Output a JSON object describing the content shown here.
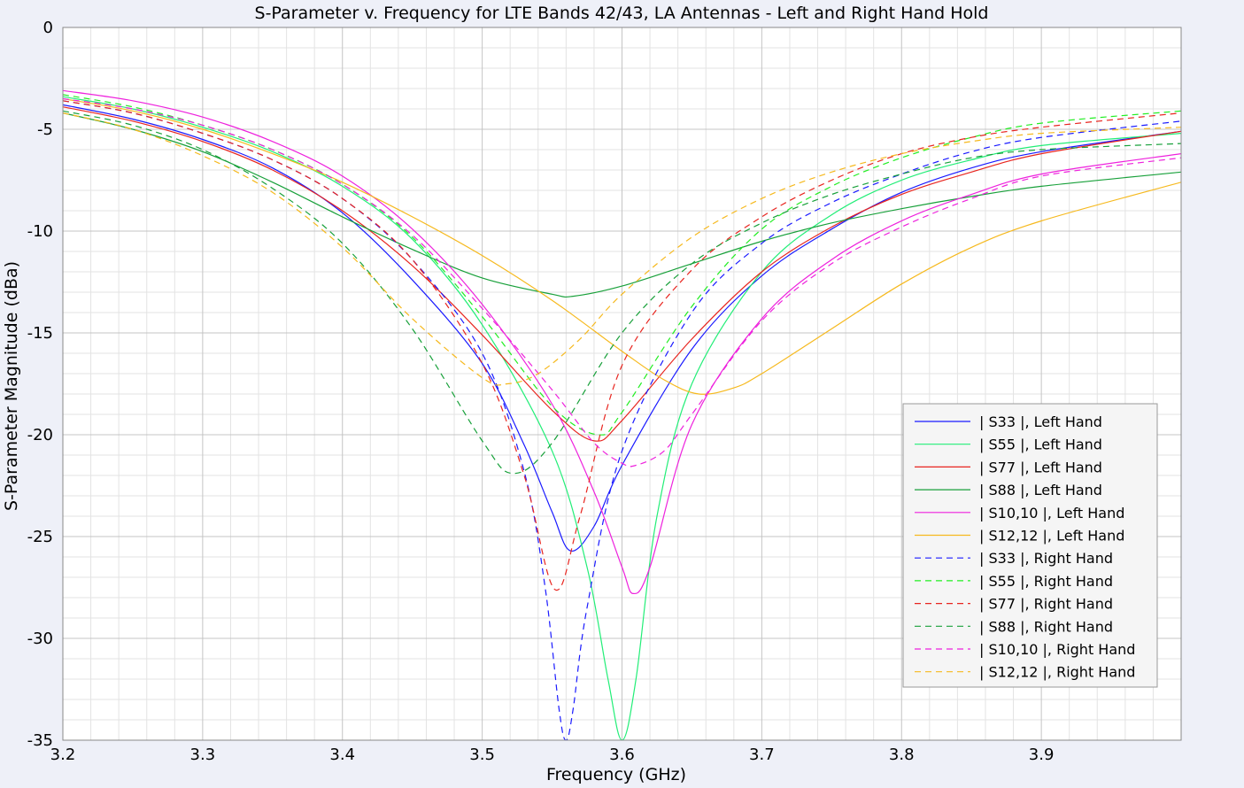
{
  "chart_data": {
    "type": "line",
    "title": "S-Parameter v. Frequency for LTE Bands 42/43, LA Antennas - Left and Right Hand Hold",
    "xlabel": "Frequency (GHz)",
    "ylabel": "S-Parameter Magnitude (dBa)",
    "xlim": [
      3.2,
      4.0
    ],
    "ylim": [
      -35,
      0
    ],
    "xticks": [
      "3.2",
      "3.3",
      "3.4",
      "3.5",
      "3.6",
      "3.7",
      "3.8",
      "3.9"
    ],
    "yticks": [
      "0",
      "-5",
      "-10",
      "-15",
      "-20",
      "-25",
      "-30",
      "-35"
    ],
    "grid": true,
    "legend_position": "lower-right",
    "series": [
      {
        "name": "| S33 |, Left Hand",
        "color": "#1a1aff",
        "dash": "solid",
        "x": [
          3.2,
          3.25,
          3.3,
          3.35,
          3.4,
          3.45,
          3.5,
          3.53,
          3.55,
          3.563,
          3.58,
          3.6,
          3.65,
          3.7,
          3.75,
          3.8,
          3.85,
          3.9,
          4.0
        ],
        "y": [
          -3.8,
          -4.5,
          -5.5,
          -6.9,
          -9.1,
          -12.4,
          -16.5,
          -20.5,
          -23.8,
          -25.7,
          -24.5,
          -21.5,
          -15.8,
          -12.2,
          -9.9,
          -8.1,
          -6.9,
          -6.1,
          -5.1
        ]
      },
      {
        "name": "| S55 |, Left Hand",
        "color": "#22ee77",
        "dash": "solid",
        "x": [
          3.2,
          3.25,
          3.3,
          3.35,
          3.4,
          3.45,
          3.5,
          3.55,
          3.575,
          3.59,
          3.6,
          3.61,
          3.625,
          3.65,
          3.7,
          3.75,
          3.8,
          3.85,
          3.9,
          4.0
        ],
        "y": [
          -3.4,
          -4.0,
          -4.9,
          -6.1,
          -7.8,
          -10.4,
          -14.6,
          -20.8,
          -26.5,
          -32.0,
          -35.0,
          -32.0,
          -24.0,
          -17.5,
          -12.0,
          -9.2,
          -7.5,
          -6.5,
          -5.8,
          -5.2
        ]
      },
      {
        "name": "| S77 |, Left Hand",
        "color": "#e8251f",
        "dash": "solid",
        "x": [
          3.2,
          3.25,
          3.3,
          3.35,
          3.4,
          3.45,
          3.5,
          3.55,
          3.58,
          3.6,
          3.65,
          3.7,
          3.75,
          3.8,
          3.85,
          3.9,
          4.0
        ],
        "y": [
          -3.9,
          -4.6,
          -5.6,
          -7.0,
          -9.0,
          -11.7,
          -15.1,
          -18.8,
          -20.3,
          -19.3,
          -15.3,
          -12.0,
          -9.8,
          -8.2,
          -7.1,
          -6.2,
          -5.1
        ]
      },
      {
        "name": "| S88 |, Left Hand",
        "color": "#18a03a",
        "dash": "solid",
        "x": [
          3.2,
          3.25,
          3.3,
          3.35,
          3.4,
          3.45,
          3.5,
          3.55,
          3.565,
          3.6,
          3.65,
          3.7,
          3.75,
          3.8,
          3.85,
          3.9,
          4.0
        ],
        "y": [
          -4.2,
          -5.0,
          -6.1,
          -7.6,
          -9.3,
          -10.9,
          -12.3,
          -13.1,
          -13.2,
          -12.7,
          -11.6,
          -10.5,
          -9.6,
          -8.9,
          -8.3,
          -7.8,
          -7.1
        ]
      },
      {
        "name": "| S10,10 |, Left Hand",
        "color": "#ee22dd",
        "dash": "solid",
        "x": [
          3.2,
          3.25,
          3.3,
          3.35,
          3.4,
          3.45,
          3.5,
          3.55,
          3.58,
          3.6,
          3.608,
          3.62,
          3.65,
          3.7,
          3.75,
          3.8,
          3.85,
          3.9,
          4.0
        ],
        "y": [
          -3.1,
          -3.6,
          -4.4,
          -5.6,
          -7.3,
          -9.9,
          -13.6,
          -18.5,
          -22.8,
          -26.5,
          -27.8,
          -26.5,
          -19.5,
          -14.3,
          -11.4,
          -9.5,
          -8.2,
          -7.2,
          -6.2
        ]
      },
      {
        "name": "| S12,12 |, Left Hand",
        "color": "#f6b91e",
        "dash": "solid",
        "x": [
          3.2,
          3.25,
          3.3,
          3.35,
          3.4,
          3.45,
          3.5,
          3.55,
          3.6,
          3.63,
          3.655,
          3.68,
          3.7,
          3.75,
          3.8,
          3.85,
          3.9,
          4.0
        ],
        "y": [
          -3.5,
          -4.1,
          -5.0,
          -6.2,
          -7.6,
          -9.3,
          -11.2,
          -13.4,
          -15.9,
          -17.3,
          -18.0,
          -17.7,
          -17.0,
          -14.8,
          -12.6,
          -10.8,
          -9.5,
          -7.6
        ]
      },
      {
        "name": "| S33 |, Right Hand",
        "color": "#1a1aff",
        "dash": "dashed",
        "x": [
          3.2,
          3.25,
          3.3,
          3.35,
          3.4,
          3.45,
          3.5,
          3.53,
          3.545,
          3.555,
          3.56,
          3.565,
          3.575,
          3.6,
          3.65,
          3.7,
          3.75,
          3.8,
          3.85,
          3.9,
          4.0
        ],
        "y": [
          -3.6,
          -4.2,
          -5.2,
          -6.5,
          -8.4,
          -11.4,
          -16.0,
          -21.8,
          -27.5,
          -33.5,
          -35.0,
          -33.5,
          -28.5,
          -20.8,
          -14.0,
          -10.6,
          -8.6,
          -7.2,
          -6.1,
          -5.4,
          -4.6
        ]
      },
      {
        "name": "| S55 |, Right Hand",
        "color": "#22ee22",
        "dash": "dashed",
        "x": [
          3.2,
          3.25,
          3.3,
          3.35,
          3.4,
          3.45,
          3.5,
          3.55,
          3.583,
          3.6,
          3.65,
          3.7,
          3.75,
          3.8,
          3.85,
          3.9,
          4.0
        ],
        "y": [
          -3.3,
          -3.9,
          -4.8,
          -6.0,
          -7.7,
          -10.3,
          -14.2,
          -18.6,
          -20.0,
          -18.9,
          -13.7,
          -9.9,
          -7.8,
          -6.4,
          -5.4,
          -4.7,
          -4.1
        ]
      },
      {
        "name": "| S77 |, Right Hand",
        "color": "#e8251f",
        "dash": "dashed",
        "x": [
          3.2,
          3.25,
          3.3,
          3.35,
          3.4,
          3.45,
          3.5,
          3.53,
          3.552,
          3.57,
          3.6,
          3.65,
          3.7,
          3.75,
          3.8,
          3.85,
          3.9,
          4.0
        ],
        "y": [
          -3.6,
          -4.2,
          -5.2,
          -6.5,
          -8.4,
          -11.4,
          -16.5,
          -22.0,
          -27.6,
          -24.0,
          -16.6,
          -11.9,
          -9.3,
          -7.5,
          -6.2,
          -5.4,
          -4.9,
          -4.2
        ]
      },
      {
        "name": "| S88 |, Right Hand",
        "color": "#18a03a",
        "dash": "dashed",
        "x": [
          3.2,
          3.25,
          3.3,
          3.35,
          3.4,
          3.45,
          3.5,
          3.522,
          3.55,
          3.6,
          3.65,
          3.7,
          3.75,
          3.8,
          3.85,
          3.9,
          4.0
        ],
        "y": [
          -4.1,
          -4.8,
          -6.0,
          -7.9,
          -10.6,
          -14.8,
          -20.3,
          -21.9,
          -20.4,
          -15.0,
          -11.6,
          -9.6,
          -8.2,
          -7.2,
          -6.4,
          -6.0,
          -5.7
        ]
      },
      {
        "name": "| S10,10 |, Right Hand",
        "color": "#ee22dd",
        "dash": "dashed",
        "x": [
          3.2,
          3.25,
          3.3,
          3.35,
          3.4,
          3.45,
          3.5,
          3.55,
          3.58,
          3.6,
          3.61,
          3.63,
          3.65,
          3.7,
          3.75,
          3.8,
          3.85,
          3.9,
          4.0
        ],
        "y": [
          -3.5,
          -4.0,
          -4.8,
          -6.0,
          -7.7,
          -10.2,
          -13.8,
          -17.8,
          -20.4,
          -21.4,
          -21.5,
          -20.8,
          -19.0,
          -14.4,
          -11.6,
          -9.8,
          -8.4,
          -7.3,
          -6.4
        ]
      },
      {
        "name": "| S12,12 |, Right Hand",
        "color": "#f6b91e",
        "dash": "dashed",
        "x": [
          3.2,
          3.25,
          3.3,
          3.35,
          3.4,
          3.45,
          3.5,
          3.518,
          3.54,
          3.57,
          3.6,
          3.65,
          3.7,
          3.75,
          3.8,
          3.85,
          3.9,
          4.0
        ],
        "y": [
          -4.2,
          -5.0,
          -6.3,
          -8.1,
          -10.8,
          -14.3,
          -17.2,
          -17.5,
          -17.0,
          -15.3,
          -13.1,
          -10.3,
          -8.4,
          -7.1,
          -6.2,
          -5.6,
          -5.2,
          -4.9
        ]
      }
    ]
  }
}
